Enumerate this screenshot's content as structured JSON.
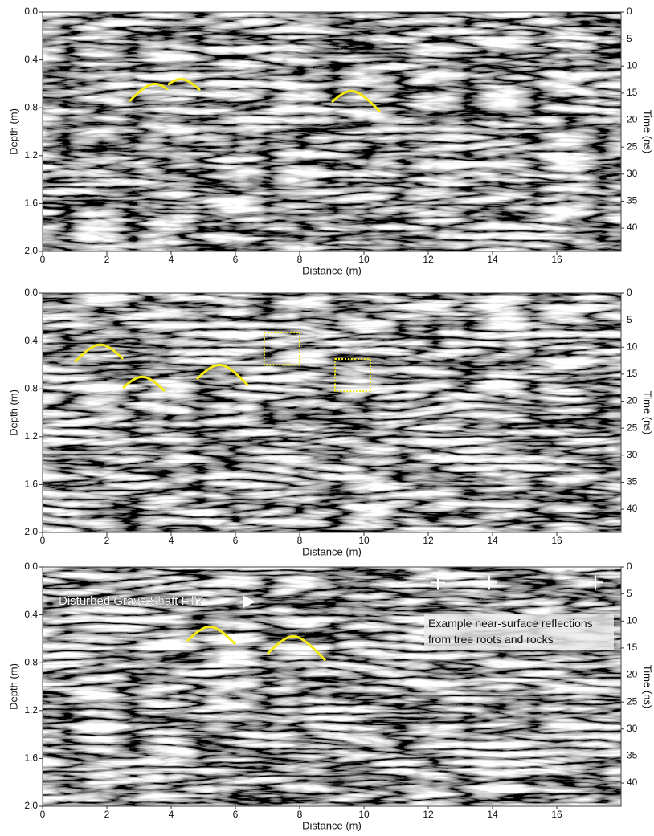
{
  "chart_data": [
    {
      "type": "radargram",
      "xlabel": "Distance (m)",
      "ylabel": "Depth (m)",
      "y2label": "Time (ns)",
      "xlim": [
        0,
        18
      ],
      "xticks": [
        0,
        2,
        4,
        6,
        8,
        10,
        12,
        14,
        16
      ],
      "ylim": [
        0,
        2
      ],
      "yticks": [
        {
          "value": 0,
          "label": "0.0"
        },
        0.4,
        0.8,
        1.2,
        1.6,
        {
          "value": 2,
          "label": "2.0"
        }
      ],
      "y2lim": [
        0,
        44.3
      ],
      "y2ticks": [
        0,
        5,
        10,
        15,
        20,
        25,
        30,
        35,
        40
      ]
    },
    {
      "type": "radargram",
      "xlabel": "Distance (m)",
      "ylabel": "Depth (m)",
      "y2label": "Time (ns)",
      "xlim": [
        0,
        18
      ],
      "xticks": [
        0,
        2,
        4,
        6,
        8,
        10,
        12,
        14,
        16
      ],
      "ylim": [
        0,
        2
      ],
      "yticks": [
        {
          "value": 0,
          "label": "0.0"
        },
        0.4,
        0.8,
        1.2,
        1.6,
        {
          "value": 2,
          "label": "2.0"
        }
      ],
      "y2lim": [
        0,
        44.3
      ],
      "y2ticks": [
        0,
        5,
        10,
        15,
        20,
        25,
        30,
        35,
        40
      ]
    },
    {
      "type": "radargram",
      "xlabel": "Distance (m)",
      "ylabel": "Depth (m)",
      "y2label": "Time (ns)",
      "xlim": [
        0,
        18
      ],
      "xticks": [
        0,
        2,
        4,
        6,
        8,
        10,
        12,
        14,
        16
      ],
      "ylim": [
        0,
        2
      ],
      "yticks": [
        {
          "value": 0,
          "label": "0.0"
        },
        0.4,
        0.8,
        1.2,
        1.6,
        {
          "value": 2,
          "label": "2.0"
        }
      ],
      "y2lim": [
        0,
        44.3
      ],
      "y2ticks": [
        0,
        5,
        10,
        15,
        20,
        25,
        30,
        35,
        40
      ],
      "annotations": [
        "Disturbed Grave Shaft Fill?",
        [
          "Example near-surface reflections",
          "from tree roots and rocks"
        ]
      ]
    }
  ]
}
